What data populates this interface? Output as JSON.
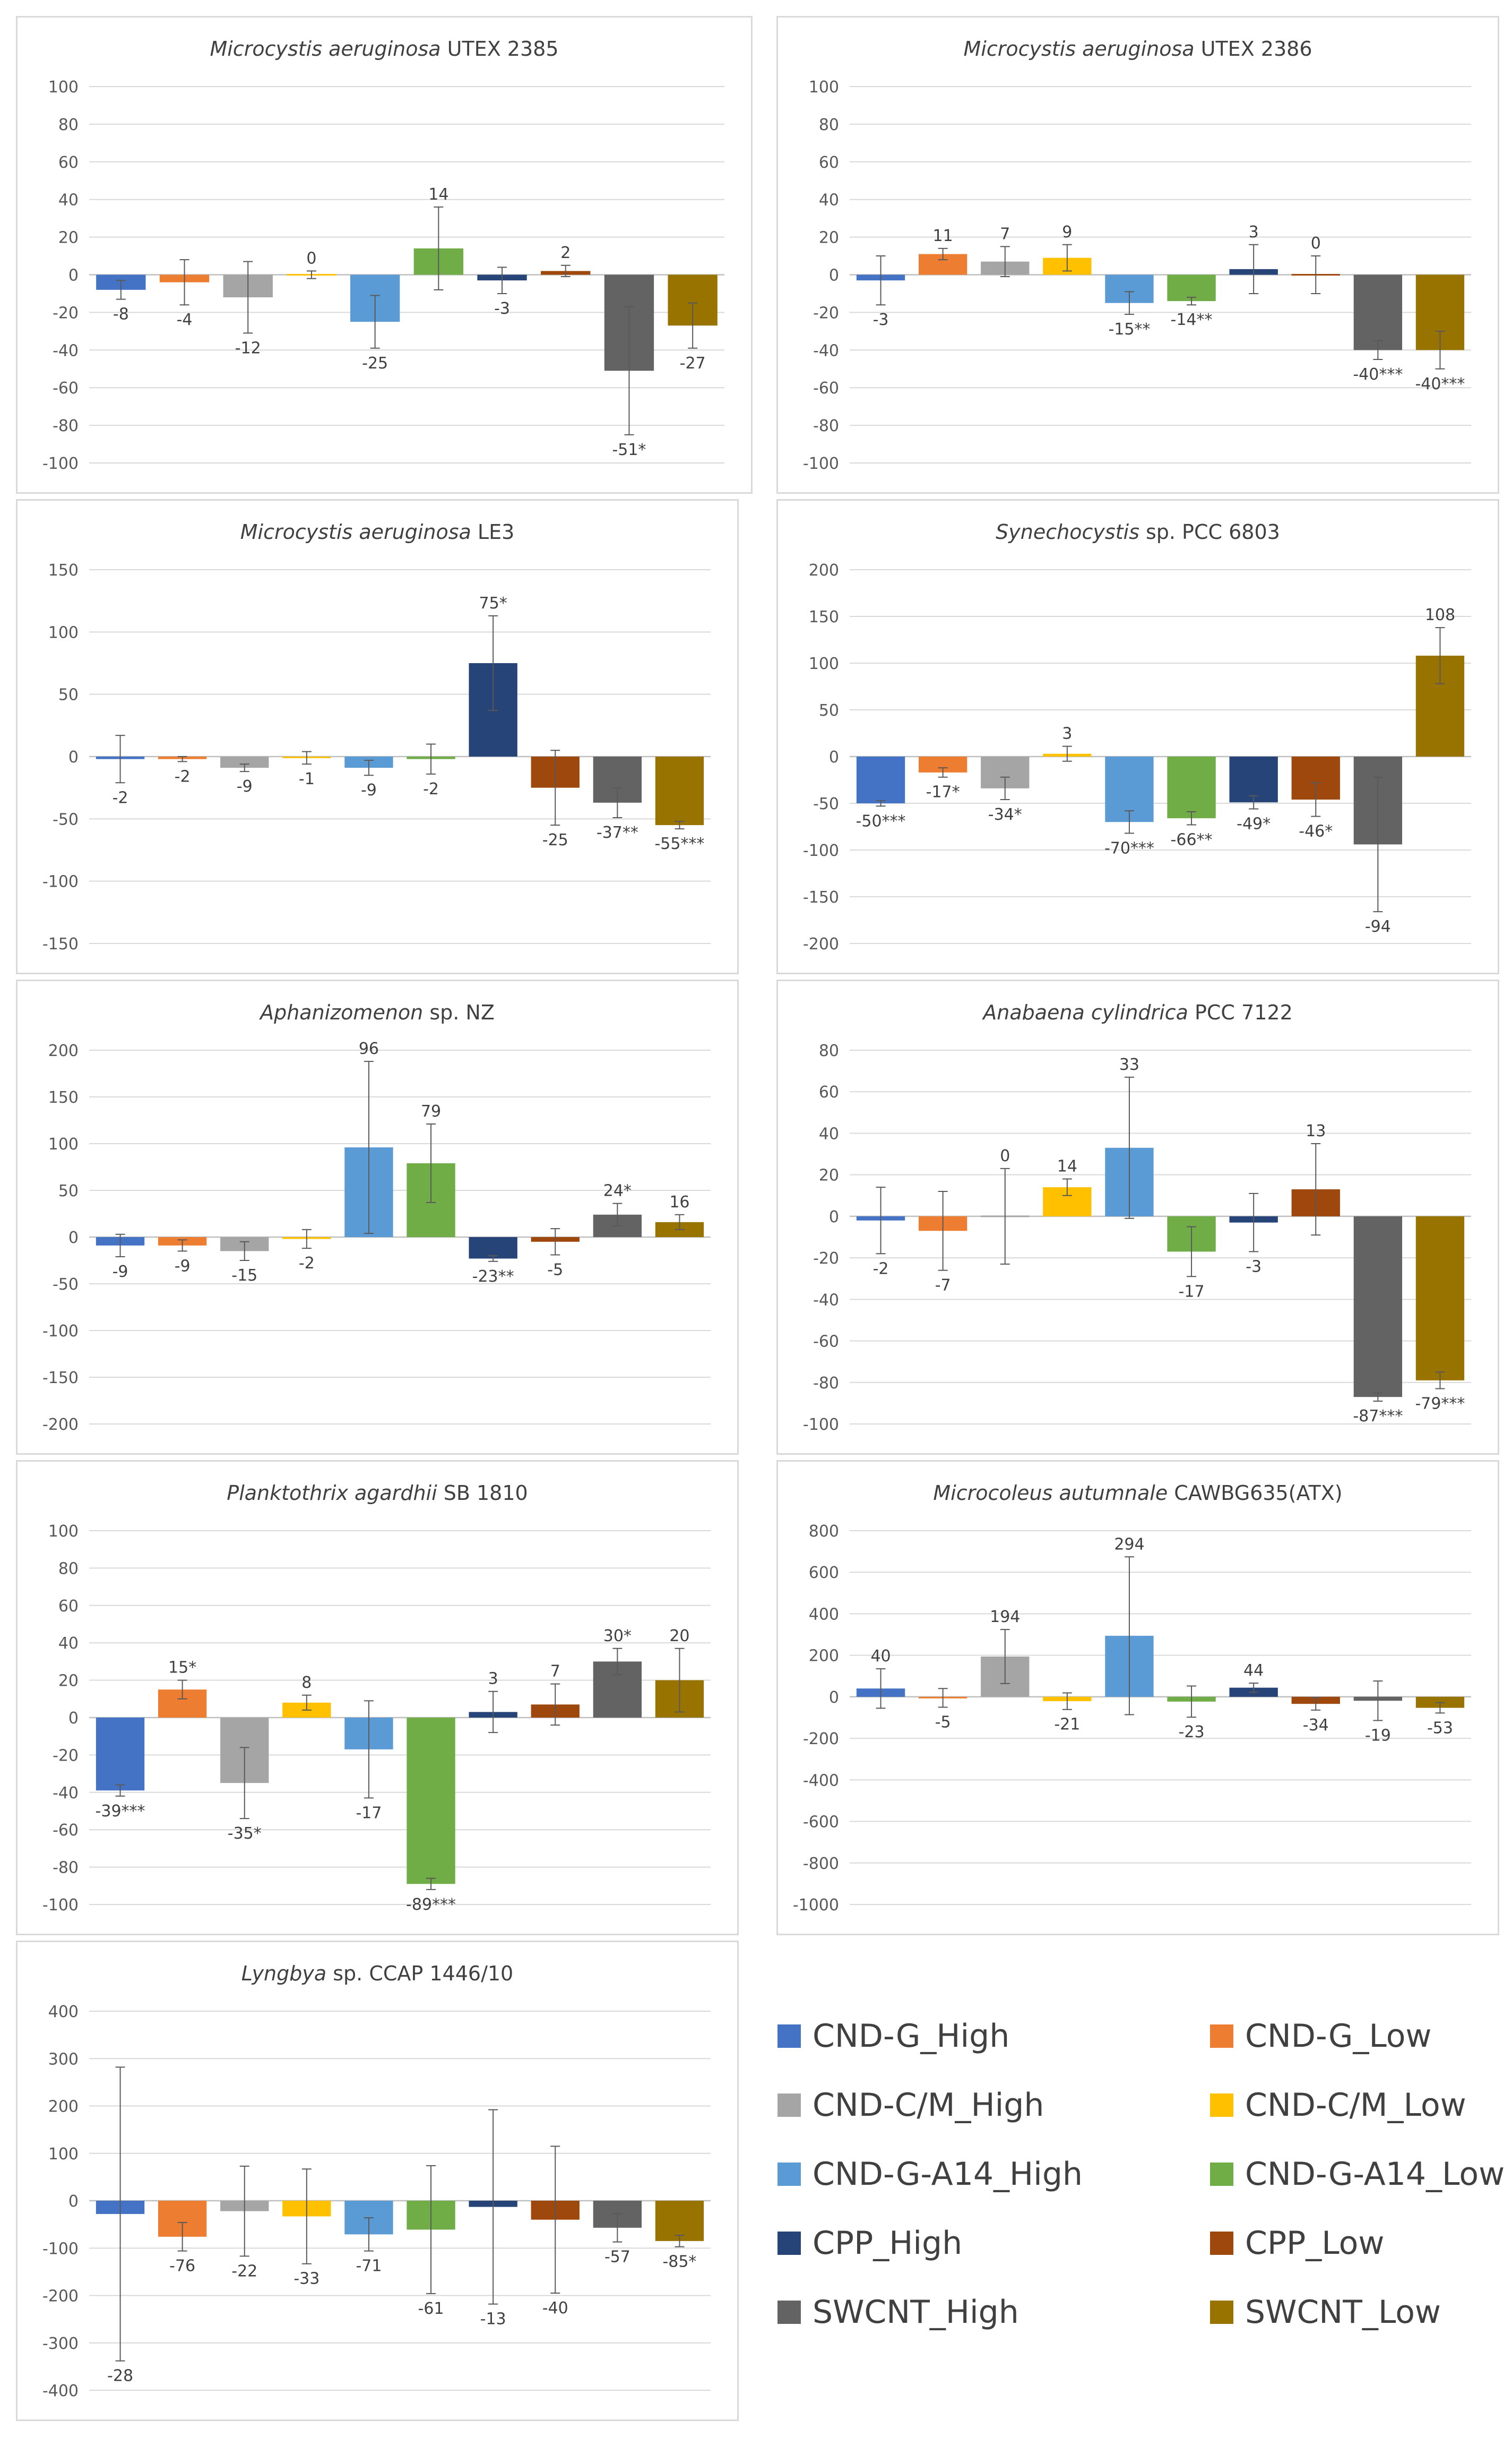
{
  "series_colors": [
    "#4472C4",
    "#ED7D31",
    "#A5A5A5",
    "#FFC000",
    "#5B9BD5",
    "#70AD47",
    "#264478",
    "#9E480E",
    "#636363",
    "#997300"
  ],
  "legend": [
    {
      "label": "CND-G_High",
      "color": "#4472C4"
    },
    {
      "label": "CND-G_Low",
      "color": "#ED7D31"
    },
    {
      "label": "CND-C/M_High",
      "color": "#A5A5A5"
    },
    {
      "label": "CND-C/M_Low",
      "color": "#FFC000"
    },
    {
      "label": "CND-G-A14_High",
      "color": "#5B9BD5"
    },
    {
      "label": "CND-G-A14_Low",
      "color": "#70AD47"
    },
    {
      "label": "CPP_High",
      "color": "#264478"
    },
    {
      "label": "CPP_Low",
      "color": "#9E480E"
    },
    {
      "label": "SWCNT_High",
      "color": "#636363"
    },
    {
      "label": "SWCNT_Low",
      "color": "#997300"
    }
  ],
  "chart_data": [
    {
      "type": "bar",
      "title_italic": "Microcystis aeruginosa",
      "title_rest": " UTEX 2385",
      "categories": [
        "CND-G_High",
        "CND-G_Low",
        "CND-C/M_High",
        "CND-C/M_Low",
        "CND-G-A14_High",
        "CND-G-A14_Low",
        "CPP_High",
        "CPP_Low",
        "SWCNT_High",
        "SWCNT_Low"
      ],
      "values": [
        -8,
        -4,
        -12,
        0,
        -25,
        14,
        -3,
        2,
        -51,
        -27
      ],
      "errors": [
        5,
        12,
        19,
        2,
        14,
        22,
        7,
        3,
        34,
        12
      ],
      "labels": [
        "-8",
        "-4",
        "-12",
        "0",
        "-25",
        "14",
        "-3",
        "2",
        "-51*",
        "-27"
      ],
      "ylim": [
        -100,
        100
      ],
      "yticks": [
        -100,
        -80,
        -60,
        -40,
        -20,
        0,
        20,
        40,
        60,
        80,
        100
      ]
    },
    {
      "type": "bar",
      "title_italic": "Microcystis aeruginosa",
      "title_rest": " UTEX 2386",
      "categories": [
        "CND-G_High",
        "CND-G_Low",
        "CND-C/M_High",
        "CND-C/M_Low",
        "CND-G-A14_High",
        "CND-G-A14_Low",
        "CPP_High",
        "CPP_Low",
        "SWCNT_High",
        "SWCNT_Low"
      ],
      "values": [
        -3,
        11,
        7,
        9,
        -15,
        -14,
        3,
        0,
        -40,
        -40
      ],
      "errors": [
        13,
        3,
        8,
        7,
        6,
        2,
        13,
        10,
        5,
        10
      ],
      "labels": [
        "-3",
        "11",
        "7",
        "9",
        "-15**",
        "-14**",
        "3",
        "0",
        "-40***",
        "-40***"
      ],
      "ylim": [
        -100,
        100
      ],
      "yticks": [
        -100,
        -80,
        -60,
        -40,
        -20,
        0,
        20,
        40,
        60,
        80,
        100
      ]
    },
    {
      "type": "bar",
      "title_italic": "Microcystis aeruginosa",
      "title_rest": " LE3",
      "categories": [
        "CND-G_High",
        "CND-G_Low",
        "CND-C/M_High",
        "CND-C/M_Low",
        "CND-G-A14_High",
        "CND-G-A14_Low",
        "CPP_High",
        "CPP_Low",
        "SWCNT_High",
        "SWCNT_Low"
      ],
      "values": [
        -2,
        -2,
        -9,
        -1,
        -9,
        -2,
        75,
        -25,
        -37,
        -55
      ],
      "errors": [
        19,
        2,
        3,
        5,
        6,
        12,
        38,
        30,
        12,
        3
      ],
      "labels": [
        "-2",
        "-2",
        "-9",
        "-1",
        "-9",
        "-2",
        "75*",
        "-25",
        "-37**",
        "-55***"
      ],
      "ylim": [
        -150,
        150
      ],
      "yticks": [
        -150,
        -100,
        -50,
        0,
        50,
        100,
        150
      ]
    },
    {
      "type": "bar",
      "title_italic": "Synechocystis",
      "title_rest": " sp. PCC 6803",
      "categories": [
        "CND-G_High",
        "CND-G_Low",
        "CND-C/M_High",
        "CND-C/M_Low",
        "CND-G-A14_High",
        "CND-G-A14_Low",
        "CPP_High",
        "CPP_Low",
        "SWCNT_High",
        "SWCNT_Low"
      ],
      "values": [
        -50,
        -17,
        -34,
        3,
        -70,
        -66,
        -49,
        -46,
        -94,
        108
      ],
      "errors": [
        3,
        5,
        12,
        8,
        12,
        7,
        7,
        18,
        72,
        30
      ],
      "labels": [
        "-50***",
        "-17*",
        "-34*",
        "3",
        "-70***",
        "-66**",
        "-49*",
        "-46*",
        "-94",
        "108"
      ],
      "ylim": [
        -200,
        200
      ],
      "yticks": [
        -200,
        -150,
        -100,
        -50,
        0,
        50,
        100,
        150,
        200
      ]
    },
    {
      "type": "bar",
      "title_italic": "Aphanizomenon",
      "title_rest": " sp. NZ",
      "categories": [
        "CND-G_High",
        "CND-G_Low",
        "CND-C/M_High",
        "CND-C/M_Low",
        "CND-G-A14_High",
        "CND-G-A14_Low",
        "CPP_High",
        "CPP_Low",
        "SWCNT_High",
        "SWCNT_Low"
      ],
      "values": [
        -9,
        -9,
        -15,
        -2,
        96,
        79,
        -23,
        -5,
        24,
        16
      ],
      "errors": [
        12,
        6,
        10,
        10,
        92,
        42,
        3,
        14,
        12,
        8
      ],
      "labels": [
        "-9",
        "-9",
        "-15",
        "-2",
        "96",
        "79",
        "-23**",
        "-5",
        "24*",
        "16"
      ],
      "ylim": [
        -200,
        200
      ],
      "yticks": [
        -200,
        -150,
        -100,
        -50,
        0,
        50,
        100,
        150,
        200
      ]
    },
    {
      "type": "bar",
      "title_italic": "Anabaena cylindrica",
      "title_rest": " PCC 7122",
      "categories": [
        "CND-G_High",
        "CND-G_Low",
        "CND-C/M_High",
        "CND-C/M_Low",
        "CND-G-A14_High",
        "CND-G-A14_Low",
        "CPP_High",
        "CPP_Low",
        "SWCNT_High",
        "SWCNT_Low"
      ],
      "values": [
        -2,
        -7,
        0,
        14,
        33,
        -17,
        -3,
        13,
        -87,
        -79
      ],
      "errors": [
        16,
        19,
        23,
        4,
        34,
        12,
        14,
        22,
        2,
        4
      ],
      "labels": [
        "-2",
        "-7",
        "0",
        "14",
        "33",
        "-17",
        "-3",
        "13",
        "-87***",
        "-79***"
      ],
      "ylim": [
        -100,
        80
      ],
      "yticks": [
        -100,
        -80,
        -60,
        -40,
        -20,
        0,
        20,
        40,
        60,
        80
      ]
    },
    {
      "type": "bar",
      "title_italic": "Planktothrix agardhii",
      "title_rest": " SB 1810",
      "categories": [
        "CND-G_High",
        "CND-G_Low",
        "CND-C/M_High",
        "CND-C/M_Low",
        "CND-G-A14_High",
        "CND-G-A14_Low",
        "CPP_High",
        "CPP_Low",
        "SWCNT_High",
        "SWCNT_Low"
      ],
      "values": [
        -39,
        15,
        -35,
        8,
        -17,
        -89,
        3,
        7,
        30,
        20
      ],
      "errors": [
        3,
        5,
        19,
        4,
        26,
        3,
        11,
        11,
        7,
        17
      ],
      "labels": [
        "-39***",
        "15*",
        "-35*",
        "8",
        "-17",
        "-89***",
        "3",
        "7",
        "30*",
        "20"
      ],
      "ylim": [
        -100,
        100
      ],
      "yticks": [
        -100,
        -80,
        -60,
        -40,
        -20,
        0,
        20,
        40,
        60,
        80,
        100
      ]
    },
    {
      "type": "bar",
      "title_italic": "Microcoleus autumnale",
      "title_rest": " CAWBG635(ATX)",
      "categories": [
        "CND-G_High",
        "CND-G_Low",
        "CND-C/M_High",
        "CND-C/M_Low",
        "CND-G-A14_High",
        "CND-G-A14_Low",
        "CPP_High",
        "CPP_Low",
        "SWCNT_High",
        "SWCNT_Low"
      ],
      "values": [
        40,
        -5,
        194,
        -21,
        294,
        -23,
        44,
        -34,
        -19,
        -53
      ],
      "errors": [
        95,
        45,
        130,
        40,
        380,
        75,
        22,
        30,
        95,
        25
      ],
      "labels": [
        "40",
        "-5",
        "194",
        "-21",
        "294",
        "-23",
        "44",
        "-34",
        "-19",
        "-53"
      ],
      "ylim": [
        -1000,
        800
      ],
      "yticks": [
        -1000,
        -800,
        -600,
        -400,
        -200,
        0,
        200,
        400,
        600,
        800
      ]
    },
    {
      "type": "bar",
      "title_italic": "Lyngbya",
      "title_rest": " sp. CCAP 1446/10",
      "categories": [
        "CND-G_High",
        "CND-G_Low",
        "CND-C/M_High",
        "CND-C/M_Low",
        "CND-G-A14_High",
        "CND-G-A14_Low",
        "CPP_High",
        "CPP_Low",
        "SWCNT_High",
        "SWCNT_Low"
      ],
      "values": [
        -28,
        -76,
        -22,
        -33,
        -71,
        -61,
        -13,
        -40,
        -57,
        -85
      ],
      "errors": [
        310,
        30,
        95,
        100,
        35,
        135,
        205,
        155,
        30,
        12
      ],
      "labels": [
        "-28",
        "-76",
        "-22",
        "-33",
        "-71",
        "-61",
        "-13",
        "-40",
        "-57",
        "-85*"
      ],
      "ylim": [
        -400,
        400
      ],
      "yticks": [
        -400,
        -300,
        -200,
        -100,
        0,
        100,
        200,
        300,
        400
      ]
    }
  ]
}
